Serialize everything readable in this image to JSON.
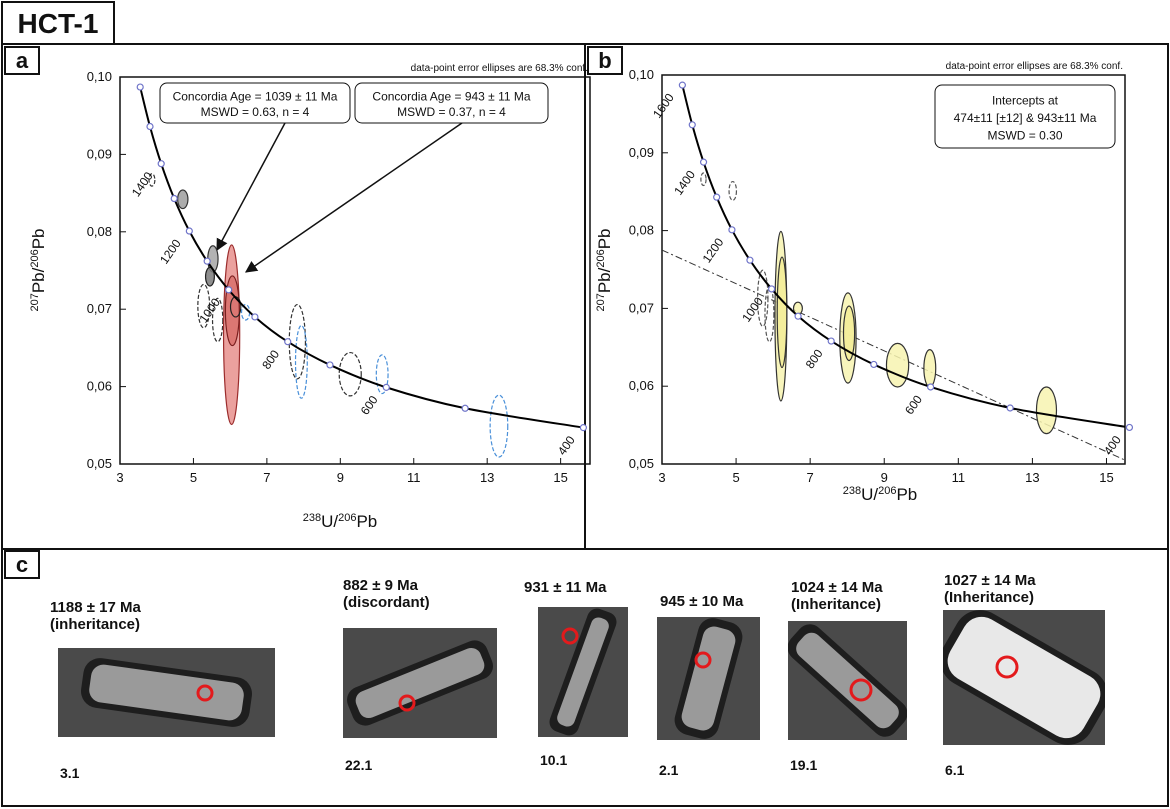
{
  "header": {
    "title": "HCT-1"
  },
  "panel_labels": [
    "a",
    "b",
    "c"
  ],
  "chart_data": [
    {
      "type": "concordia",
      "note": "data-point error ellipses are 68.3% conf.",
      "x_label": [
        {
          "text": "238",
          "sup": true
        },
        {
          "text": "U/"
        },
        {
          "text": "206",
          "sup": true
        },
        {
          "text": "Pb"
        }
      ],
      "y_label": [
        {
          "text": "207",
          "sup": true
        },
        {
          "text": "Pb/"
        },
        {
          "text": "206",
          "sup": true
        },
        {
          "text": "Pb"
        }
      ],
      "xlim": [
        3,
        15.8
      ],
      "ylim": [
        0.05,
        0.1
      ],
      "xticks": [
        3,
        5,
        7,
        9,
        11,
        13,
        15
      ],
      "yticks": [
        {
          "value": 0.05,
          "label": "0,05"
        },
        {
          "value": 0.06,
          "label": "0,06"
        },
        {
          "value": 0.07,
          "label": "0,07"
        },
        {
          "value": 0.08,
          "label": "0,08"
        },
        {
          "value": 0.09,
          "label": "0,09"
        },
        {
          "value": 0.1,
          "label": "0,10"
        }
      ],
      "concordia": {
        "color": "#000000",
        "marker_color": "#6f74c9",
        "x": [
          3.55,
          3.817,
          4.122,
          4.476,
          4.888,
          5.374,
          5.959,
          6.674,
          7.568,
          8.718,
          10.252,
          12.399,
          15.62
        ],
        "y": [
          0.0987,
          0.0936,
          0.0888,
          0.0843,
          0.0801,
          0.0762,
          0.0725,
          0.069,
          0.0658,
          0.0628,
          0.0599,
          0.0572,
          0.0547
        ],
        "labels": [
          null,
          null,
          "1400",
          null,
          "1200",
          null,
          "1000",
          null,
          "800",
          null,
          "600",
          null,
          "400"
        ]
      },
      "ellipses": [
        {
          "x": 3.87,
          "y": 0.0867,
          "x_err": 0.08,
          "y_err": 0.0008,
          "fill": "none",
          "stroke": "#333333",
          "dashed": true
        },
        {
          "x": 4.71,
          "y": 0.0842,
          "x_err": 0.14,
          "y_err": 0.0012,
          "fill": "#9e9e9e",
          "stroke": "#333333",
          "dashed": false
        },
        {
          "x": 5.53,
          "y": 0.0765,
          "x_err": 0.14,
          "y_err": 0.0017,
          "fill": "#a6a6a6",
          "stroke": "#333333",
          "dashed": false
        },
        {
          "x": 5.45,
          "y": 0.0742,
          "x_err": 0.12,
          "y_err": 0.0012,
          "fill": "#7a7a7a",
          "stroke": "#222222",
          "dashed": false
        },
        {
          "x": 5.28,
          "y": 0.0704,
          "x_err": 0.16,
          "y_err": 0.0028,
          "fill": "none",
          "stroke": "#333333",
          "dashed": true
        },
        {
          "x": 5.66,
          "y": 0.0686,
          "x_err": 0.14,
          "y_err": 0.0028,
          "fill": "none",
          "stroke": "#333333",
          "dashed": true
        },
        {
          "x": 6.04,
          "y": 0.0667,
          "x_err": 0.22,
          "y_err": 0.0116,
          "fill": "#e8918d",
          "stroke": "#9b2c2c",
          "dashed": false
        },
        {
          "x": 6.06,
          "y": 0.0698,
          "x_err": 0.19,
          "y_err": 0.0045,
          "fill": "#d9706b",
          "stroke": "#7a1f1f",
          "dashed": false
        },
        {
          "x": 6.15,
          "y": 0.0703,
          "x_err": 0.14,
          "y_err": 0.0013,
          "fill": "none",
          "stroke": "#222222",
          "dashed": false
        },
        {
          "x": 6.42,
          "y": 0.0696,
          "x_err": 0.11,
          "y_err": 0.001,
          "fill": "none",
          "stroke": "#4a90d9",
          "dashed": true
        },
        {
          "x": 7.83,
          "y": 0.0658,
          "x_err": 0.22,
          "y_err": 0.0048,
          "fill": "none",
          "stroke": "#333333",
          "dashed": true
        },
        {
          "x": 7.94,
          "y": 0.0632,
          "x_err": 0.16,
          "y_err": 0.0047,
          "fill": "none",
          "stroke": "#4a90d9",
          "dashed": true
        },
        {
          "x": 9.27,
          "y": 0.0616,
          "x_err": 0.3,
          "y_err": 0.0028,
          "fill": "none",
          "stroke": "#333333",
          "dashed": true
        },
        {
          "x": 10.14,
          "y": 0.0616,
          "x_err": 0.16,
          "y_err": 0.0025,
          "fill": "none",
          "stroke": "#4a90d9",
          "dashed": true
        },
        {
          "x": 13.32,
          "y": 0.0549,
          "x_err": 0.24,
          "y_err": 0.004,
          "fill": "none",
          "stroke": "#4a90d9",
          "dashed": true
        }
      ],
      "annotations": [
        {
          "lines": [
            "Concordia Age = 1039 ± 11 Ma",
            "MSWD = 0.63, n = 4"
          ]
        },
        {
          "lines": [
            "Concordia Age = 943 ± 11 Ma",
            "MSWD = 0.37, n = 4"
          ]
        }
      ]
    },
    {
      "type": "concordia",
      "note": "data-point error ellipses are 68.3% conf.",
      "x_label": [
        {
          "text": "238",
          "sup": true
        },
        {
          "text": "U/"
        },
        {
          "text": "206",
          "sup": true
        },
        {
          "text": "Pb"
        }
      ],
      "y_label": [
        {
          "text": "207",
          "sup": true
        },
        {
          "text": "Pb/"
        },
        {
          "text": "206",
          "sup": true
        },
        {
          "text": "Pb"
        }
      ],
      "xlim": [
        3,
        15.5
      ],
      "ylim": [
        0.05,
        0.1
      ],
      "xticks": [
        3,
        5,
        7,
        9,
        11,
        13,
        15
      ],
      "yticks": [
        {
          "value": 0.05,
          "label": "0,05"
        },
        {
          "value": 0.06,
          "label": "0,06"
        },
        {
          "value": 0.07,
          "label": "0,07"
        },
        {
          "value": 0.08,
          "label": "0,08"
        },
        {
          "value": 0.09,
          "label": "0,09"
        },
        {
          "value": 0.1,
          "label": "0,10"
        }
      ],
      "concordia": {
        "color": "#000000",
        "marker_color": "#6f74c9",
        "x": [
          3.55,
          3.817,
          4.122,
          4.476,
          4.888,
          5.374,
          5.959,
          6.674,
          7.568,
          8.718,
          10.252,
          12.399,
          15.62
        ],
        "y": [
          0.0987,
          0.0936,
          0.0888,
          0.0843,
          0.0801,
          0.0762,
          0.0725,
          0.069,
          0.0658,
          0.0628,
          0.0599,
          0.0572,
          0.0547
        ],
        "labels": [
          "1600",
          null,
          "1400",
          null,
          "1200",
          null,
          "1000",
          null,
          "800",
          null,
          "600",
          null,
          "400"
        ]
      },
      "discordia": {
        "color": "#333333",
        "x": [
          3,
          15.5
        ],
        "y": [
          0.0775,
          0.0505
        ]
      },
      "ellipses": [
        {
          "x": 4.12,
          "y": 0.0866,
          "x_err": 0.07,
          "y_err": 0.0008,
          "fill": "none",
          "stroke": "#555555",
          "dashed": true
        },
        {
          "x": 4.91,
          "y": 0.0851,
          "x_err": 0.1,
          "y_err": 0.0012,
          "fill": "none",
          "stroke": "#555555",
          "dashed": true
        },
        {
          "x": 5.72,
          "y": 0.0713,
          "x_err": 0.14,
          "y_err": 0.0036,
          "fill": "none",
          "stroke": "#555555",
          "dashed": true
        },
        {
          "x": 5.9,
          "y": 0.0693,
          "x_err": 0.12,
          "y_err": 0.0036,
          "fill": "none",
          "stroke": "#555555",
          "dashed": true
        },
        {
          "x": 6.21,
          "y": 0.069,
          "x_err": 0.16,
          "y_err": 0.0109,
          "fill": "#f7f3b0",
          "stroke": "#333333",
          "dashed": false
        },
        {
          "x": 6.24,
          "y": 0.0695,
          "x_err": 0.13,
          "y_err": 0.0071,
          "fill": "#f3ec96",
          "stroke": "#333333",
          "dashed": false
        },
        {
          "x": 6.67,
          "y": 0.07,
          "x_err": 0.12,
          "y_err": 0.0008,
          "fill": "#f7f3b0",
          "stroke": "#333333",
          "dashed": false
        },
        {
          "x": 8.02,
          "y": 0.0662,
          "x_err": 0.22,
          "y_err": 0.0058,
          "fill": "#f7f3b0",
          "stroke": "#333333",
          "dashed": false
        },
        {
          "x": 8.05,
          "y": 0.0668,
          "x_err": 0.15,
          "y_err": 0.0035,
          "fill": "#f3ec96",
          "stroke": "#333333",
          "dashed": false
        },
        {
          "x": 9.36,
          "y": 0.0627,
          "x_err": 0.3,
          "y_err": 0.0028,
          "fill": "#f7f3b0",
          "stroke": "#333333",
          "dashed": false
        },
        {
          "x": 10.23,
          "y": 0.0623,
          "x_err": 0.16,
          "y_err": 0.0024,
          "fill": "#f7f3b0",
          "stroke": "#333333",
          "dashed": false
        },
        {
          "x": 13.38,
          "y": 0.0569,
          "x_err": 0.27,
          "y_err": 0.003,
          "fill": "#f7f3b0",
          "stroke": "#333333",
          "dashed": false
        }
      ],
      "annotations": [
        {
          "lines": [
            "Intercepts at",
            "474±11   [±12]  & 943±11 Ma",
            "MSWD = 0.30"
          ]
        }
      ]
    }
  ],
  "zircons": [
    {
      "age": "1188 ± 17 Ma",
      "note": "(inheritance)",
      "spot": "3.1"
    },
    {
      "age": "882 ± 9 Ma",
      "note": "(discordant)",
      "spot": "22.1"
    },
    {
      "age": "931 ± 11 Ma",
      "spot": "10.1"
    },
    {
      "age": "945 ± 10 Ma",
      "spot": "2.1"
    },
    {
      "age": "1024 ± 14 Ma",
      "note": "(Inheritance)",
      "spot": "19.1"
    },
    {
      "age": "1027 ± 14 Ma",
      "note": "(Inheritance)",
      "spot": "6.1"
    }
  ]
}
